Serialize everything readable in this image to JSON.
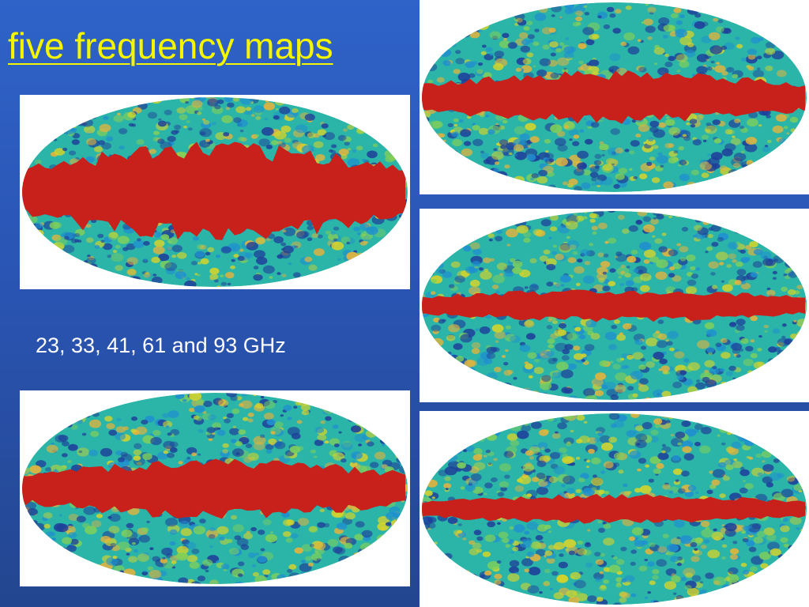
{
  "slide": {
    "title": "five frequency maps",
    "caption": "23, 33, 41, 61 and 93 GHz"
  },
  "colors": {
    "background": "#2a55b4",
    "title": "#f5f500",
    "caption": "#ffffff",
    "galactic_band": "#c8201a",
    "map_base": "#2bb4a8",
    "map_cold": "#1e3f9a",
    "map_warm": "#d6d42a"
  },
  "maps": [
    {
      "id": "sky-map-1",
      "foreground": 1.0
    },
    {
      "id": "sky-map-2",
      "foreground": 0.55
    },
    {
      "id": "sky-map-3",
      "foreground": 0.45
    },
    {
      "id": "sky-map-4",
      "foreground": 0.22
    },
    {
      "id": "sky-map-5",
      "foreground": 0.18
    }
  ]
}
